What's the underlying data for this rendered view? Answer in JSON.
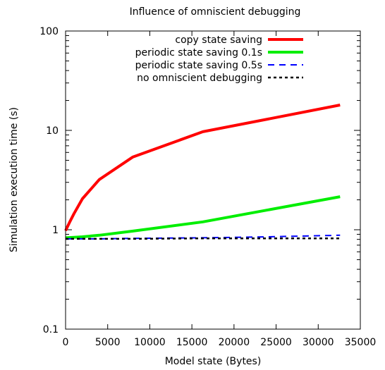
{
  "chart_data": {
    "type": "line",
    "title": "Influence of omniscient debugging",
    "xlabel": "Model state (Bytes)",
    "ylabel": "Simulation execution time (s)",
    "xlim": [
      0,
      35000
    ],
    "ylim": [
      0.1,
      100
    ],
    "yscale": "log",
    "x_ticks": [
      "0",
      "5000",
      "10000",
      "15000",
      "20000",
      "25000",
      "30000",
      "35000"
    ],
    "y_ticks": [
      "0.1",
      "1",
      "10",
      "100"
    ],
    "grid": false,
    "legend_position": "top-right",
    "series": [
      {
        "name": "copy state saving",
        "color": "#ff0000",
        "style": "solid",
        "points": [
          [
            0,
            0.98
          ],
          [
            500,
            1.2
          ],
          [
            1000,
            1.45
          ],
          [
            2000,
            2.05
          ],
          [
            4000,
            3.2
          ],
          [
            8000,
            5.4
          ],
          [
            16300,
            9.7
          ],
          [
            32600,
            18.0
          ]
        ]
      },
      {
        "name": "periodic state saving 0.1s",
        "color": "#00ee00",
        "style": "solid",
        "points": [
          [
            0,
            0.83
          ],
          [
            1000,
            0.84
          ],
          [
            2000,
            0.85
          ],
          [
            4000,
            0.88
          ],
          [
            8000,
            0.97
          ],
          [
            16300,
            1.2
          ],
          [
            32600,
            2.15
          ]
        ]
      },
      {
        "name": "periodic state saving 0.5s",
        "color": "#0000ff",
        "style": "dashed",
        "points": [
          [
            0,
            0.81
          ],
          [
            4000,
            0.81
          ],
          [
            8000,
            0.82
          ],
          [
            16300,
            0.83
          ],
          [
            24000,
            0.85
          ],
          [
            32600,
            0.88
          ]
        ]
      },
      {
        "name": "no omniscient debugging",
        "color": "#000000",
        "style": "dotted",
        "points": [
          [
            0,
            0.81
          ],
          [
            8000,
            0.81
          ],
          [
            16300,
            0.82
          ],
          [
            24000,
            0.82
          ],
          [
            32600,
            0.82
          ]
        ]
      }
    ]
  }
}
